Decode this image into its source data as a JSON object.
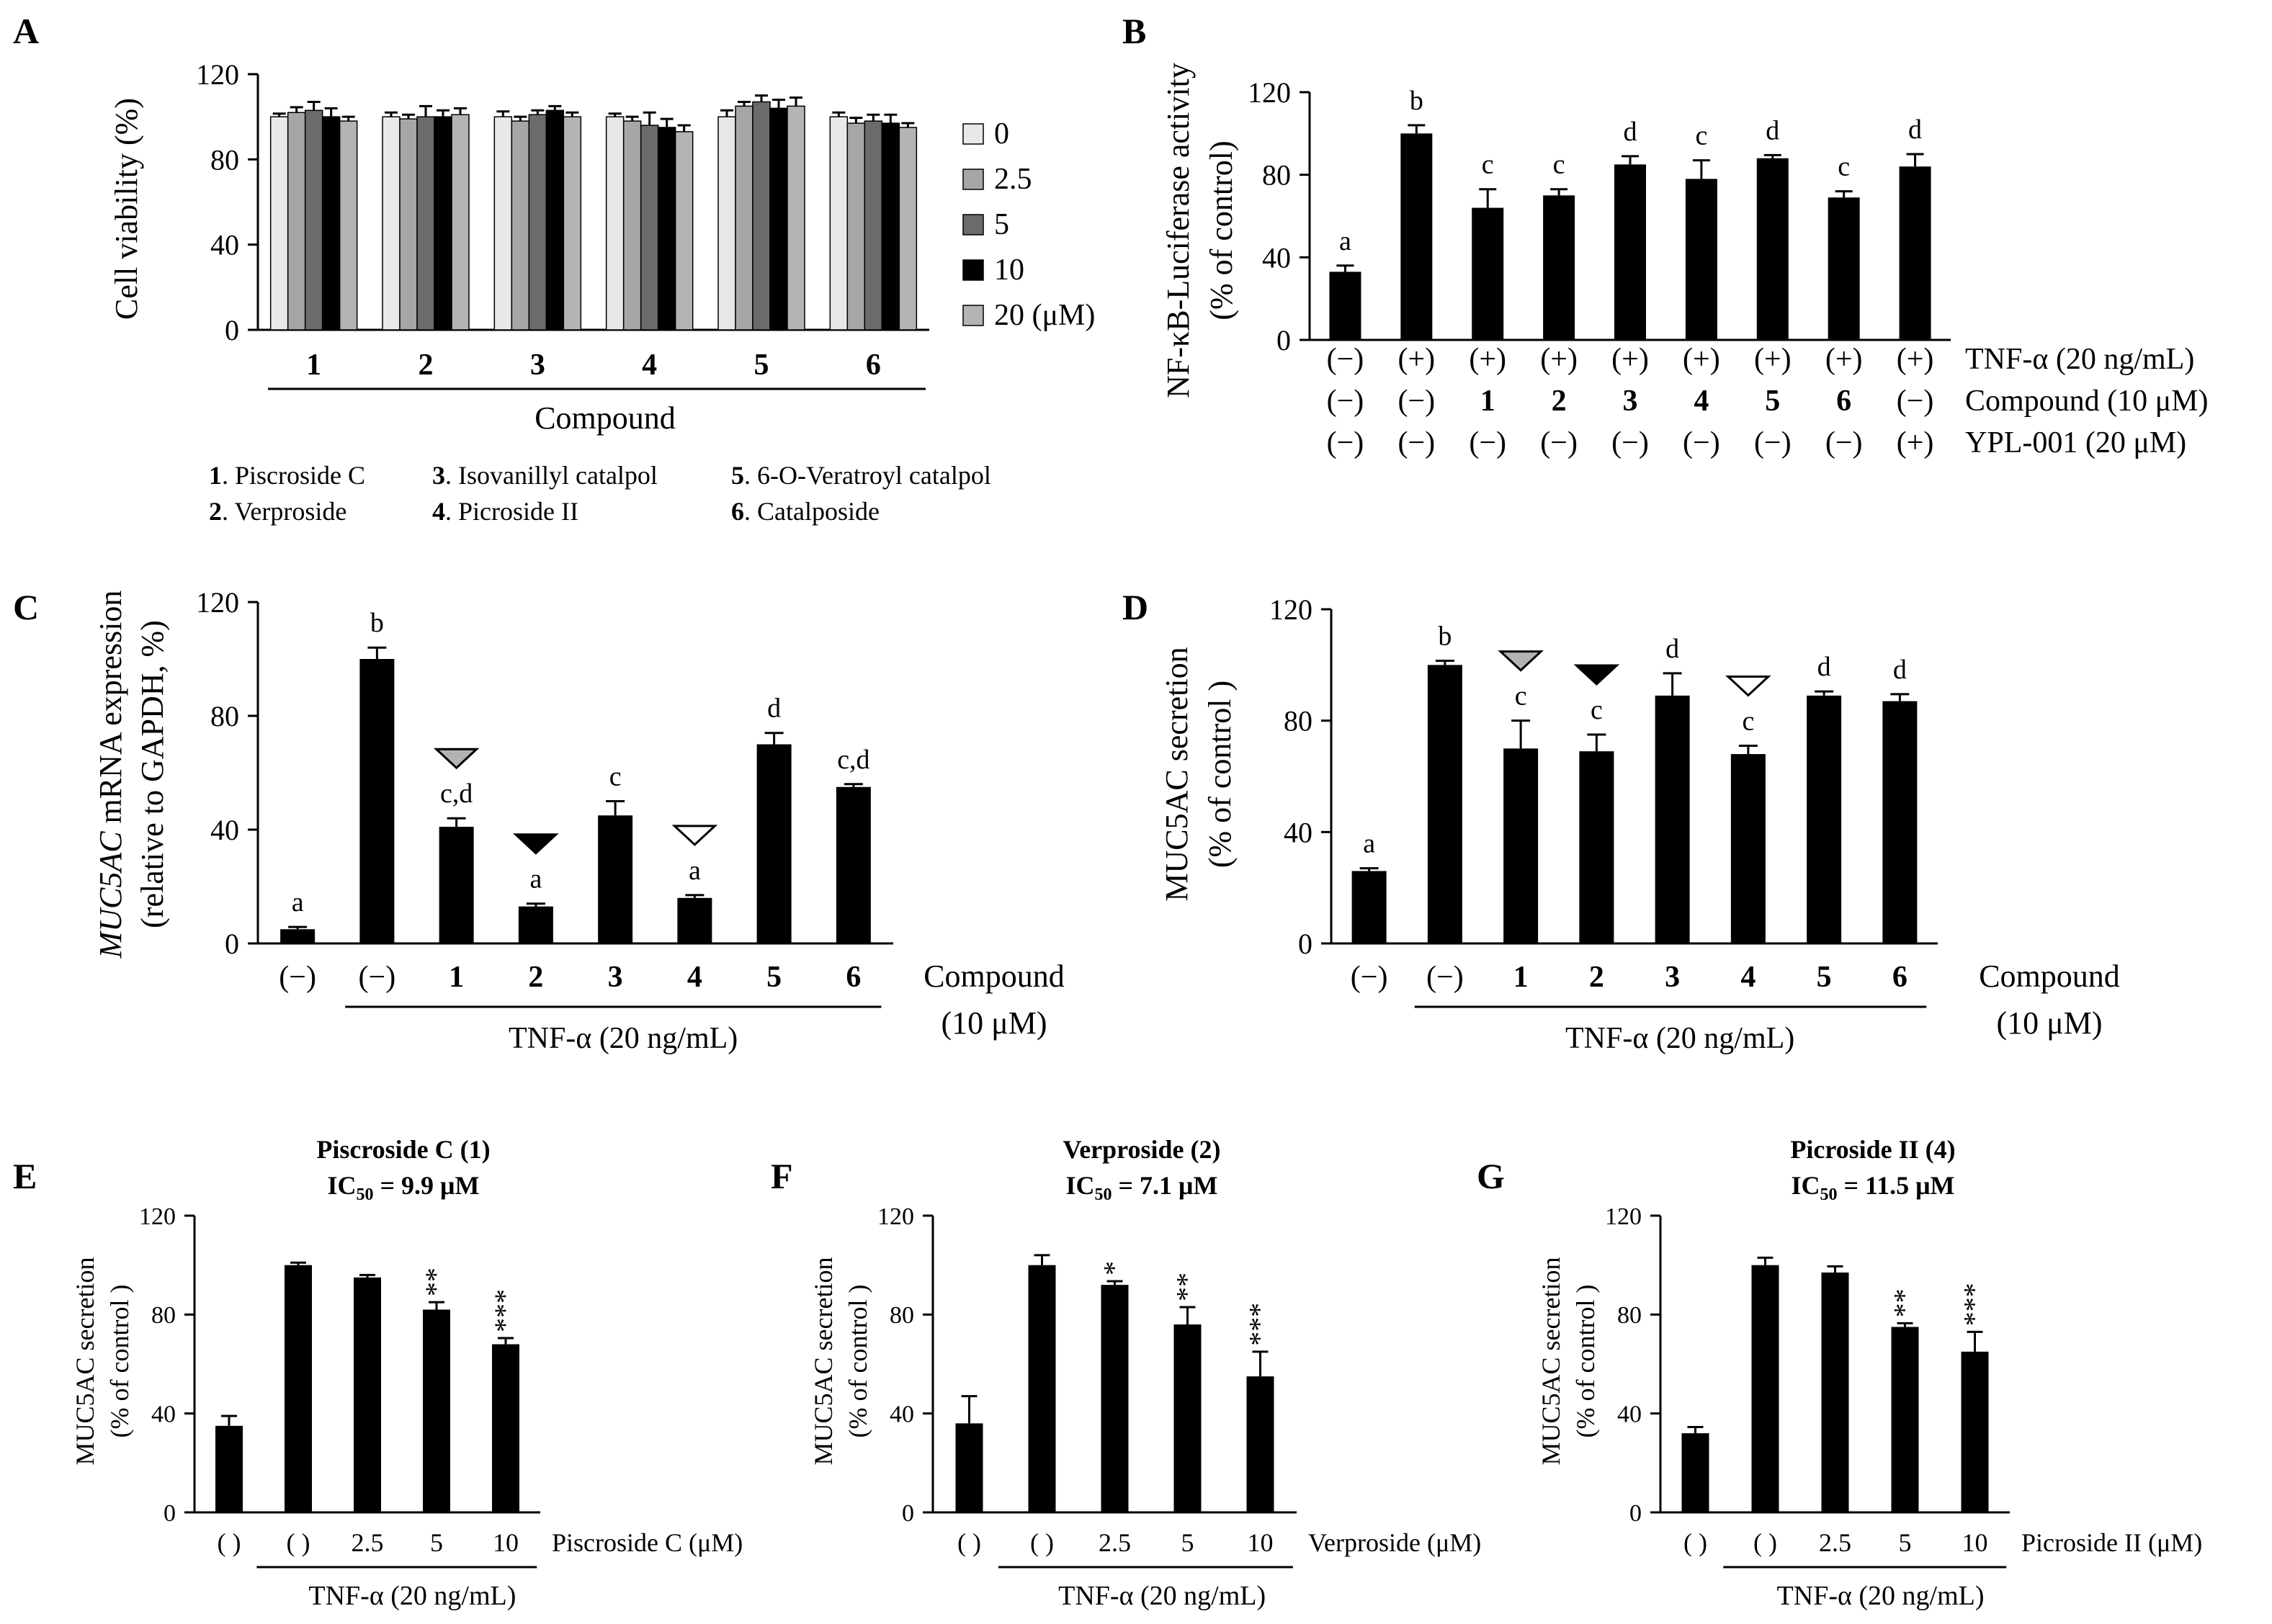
{
  "figure": {
    "compound_legend": [
      {
        "num": "1",
        "name": ". Piscroside C"
      },
      {
        "num": "2",
        "name": ". Verproside"
      },
      {
        "num": "3",
        "name": ". Isovanillyl catalpol"
      },
      {
        "num": "4",
        "name": ". Picroside II"
      },
      {
        "num": "5",
        "name": ". 6-O-Veratroyl catalpol"
      },
      {
        "num": "6",
        "name": ". Catalposide"
      }
    ]
  },
  "chart_data": [
    {
      "panel": "A",
      "type": "bar",
      "ylabel": "Cell viability (%)",
      "yticks": [
        0,
        40,
        80,
        120
      ],
      "ylim": [
        0,
        120
      ],
      "categories": [
        "1",
        "2",
        "3",
        "4",
        "5",
        "6"
      ],
      "xlabel": "Compound",
      "series": [
        {
          "name": "0",
          "color": "#e8e8e8",
          "values": [
            100,
            100,
            100,
            100,
            100,
            100
          ],
          "errors": [
            1.5,
            2,
            2.5,
            1.5,
            3,
            2
          ]
        },
        {
          "name": "2.5",
          "color": "#a6a6a6",
          "values": [
            102,
            99,
            98,
            98,
            105,
            97
          ],
          "errors": [
            2.5,
            2,
            2,
            2,
            2,
            2.5
          ]
        },
        {
          "name": "5",
          "color": "#6b6b6b",
          "values": [
            103,
            100,
            101,
            96,
            107,
            98
          ],
          "errors": [
            4,
            5,
            2,
            6,
            3,
            3
          ]
        },
        {
          "name": "10",
          "color": "#000000",
          "values": [
            100,
            100,
            103,
            95,
            104,
            97
          ],
          "errors": [
            4,
            3,
            2,
            4,
            4,
            4
          ]
        },
        {
          "name": "20 (μM)",
          "color": "#b4b4b4",
          "values": [
            98,
            101,
            100,
            93,
            105,
            95
          ],
          "errors": [
            2,
            3,
            2,
            3,
            4,
            2
          ]
        }
      ]
    },
    {
      "panel": "B",
      "type": "bar",
      "ylabel_lines": [
        "NF-κB-Luciferase activity",
        "(% of control)"
      ],
      "yticks": [
        0,
        40,
        80,
        120
      ],
      "ylim": [
        0,
        120
      ],
      "values": [
        33,
        100,
        64,
        70,
        85,
        78,
        88,
        69,
        84
      ],
      "errors": [
        3,
        4,
        9,
        3,
        4,
        9,
        1.5,
        3,
        6
      ],
      "letters": [
        "a",
        "b",
        "c",
        "c",
        "d",
        "c",
        "d",
        "c",
        "d"
      ],
      "row_labels": [
        "TNF-α (20 ng/mL)",
        "Compound (10 μM)",
        "YPL-001 (20 μM)"
      ],
      "rows": [
        [
          "(−)",
          "(+)",
          "(+)",
          "(+)",
          "(+)",
          "(+)",
          "(+)",
          "(+)",
          "(+)"
        ],
        [
          "(−)",
          "(−)",
          "1",
          "2",
          "3",
          "4",
          "5",
          "6",
          "(−)"
        ],
        [
          "(−)",
          "(−)",
          "(−)",
          "(−)",
          "(−)",
          "(−)",
          "(−)",
          "(−)",
          "(+)"
        ]
      ]
    },
    {
      "panel": "C",
      "type": "bar",
      "ylabel_italic": "MUC5AC",
      "ylabel_rest": " mRNA expression",
      "ylabel_line2": "(relative to GAPDH, %)",
      "yticks": [
        0,
        40,
        80,
        120
      ],
      "ylim": [
        0,
        120
      ],
      "categories": [
        "(−)",
        "(−)",
        "1",
        "2",
        "3",
        "4",
        "5",
        "6"
      ],
      "values": [
        5,
        100,
        41,
        13,
        45,
        16,
        70,
        55
      ],
      "errors": [
        0.8,
        4,
        3,
        1,
        5,
        1,
        4,
        1
      ],
      "letters": [
        "a",
        "b",
        "c,d",
        "a",
        "c",
        "a",
        "d",
        "c,d"
      ],
      "markers": [
        "",
        "",
        "gray",
        "black",
        "",
        "white",
        "",
        ""
      ],
      "x_caption": "Compound",
      "x_caption2": "(10 μM)",
      "treatment": "TNF-α (20 ng/mL)"
    },
    {
      "panel": "D",
      "type": "bar",
      "ylabel_lines": [
        "MUC5AC secretion",
        "(% of control )"
      ],
      "yticks": [
        0,
        40,
        80,
        120
      ],
      "ylim": [
        0,
        120
      ],
      "categories": [
        "(−)",
        "(−)",
        "1",
        "2",
        "3",
        "4",
        "5",
        "6"
      ],
      "values": [
        26,
        100,
        70,
        69,
        89,
        68,
        89,
        87
      ],
      "errors": [
        1,
        1.5,
        10,
        6,
        8,
        3,
        1.5,
        2.5
      ],
      "letters": [
        "a",
        "b",
        "c",
        "c",
        "d",
        "c",
        "d",
        "d"
      ],
      "markers": [
        "",
        "",
        "gray",
        "black",
        "",
        "white",
        "",
        ""
      ],
      "x_caption": "Compound",
      "x_caption2": "(10 μM)",
      "treatment": "TNF-α (20 ng/mL)"
    },
    {
      "panel": "E",
      "type": "bar",
      "title": "Piscroside C (1)",
      "ic50": "IC",
      "ic50_sub": "50",
      "ic50_value": " = 9.9 μM",
      "ylabel_lines": [
        "MUC5AC secretion",
        "(% of control )"
      ],
      "yticks": [
        0,
        40,
        80,
        120
      ],
      "ylim": [
        0,
        120
      ],
      "categories": [
        "( )",
        "( )",
        "2.5",
        "5",
        "10"
      ],
      "values": [
        35,
        100,
        95,
        82,
        68
      ],
      "errors": [
        4,
        1,
        1,
        3,
        2.5
      ],
      "stars": [
        "",
        "",
        "",
        "**",
        "***"
      ],
      "x_caption": "Piscroside C (μM)",
      "treatment": "TNF-α (20 ng/mL)"
    },
    {
      "panel": "F",
      "type": "bar",
      "title": "Verproside (2)",
      "ic50": "IC",
      "ic50_sub": "50",
      "ic50_value": " = 7.1 μM",
      "ylabel_lines": [
        "MUC5AC secretion",
        "(% of control )"
      ],
      "yticks": [
        0,
        40,
        80,
        120
      ],
      "ylim": [
        0,
        120
      ],
      "categories": [
        "( )",
        "( )",
        "2.5",
        "5",
        "10"
      ],
      "values": [
        36,
        100,
        92,
        76,
        55
      ],
      "errors": [
        11,
        4,
        1.5,
        7,
        10
      ],
      "stars": [
        "",
        "",
        "*",
        "**",
        "***"
      ],
      "x_caption": "Verproside (μM)",
      "treatment": "TNF-α (20 ng/mL)"
    },
    {
      "panel": "G",
      "type": "bar",
      "title": "Picroside II (4)",
      "ic50": "IC",
      "ic50_sub": "50",
      "ic50_value": " = 11.5 μM",
      "ylabel_lines": [
        "MUC5AC secretion",
        "(% of control )"
      ],
      "yticks": [
        0,
        40,
        80,
        120
      ],
      "ylim": [
        0,
        120
      ],
      "categories": [
        "( )",
        "( )",
        "2.5",
        "5",
        "10"
      ],
      "values": [
        32,
        100,
        97,
        75,
        65
      ],
      "errors": [
        2.5,
        3,
        2.5,
        1.5,
        8
      ],
      "stars": [
        "",
        "",
        "",
        "**",
        "***"
      ],
      "x_caption": "Picroside II (μM)",
      "treatment": "TNF-α (20 ng/mL)"
    }
  ]
}
